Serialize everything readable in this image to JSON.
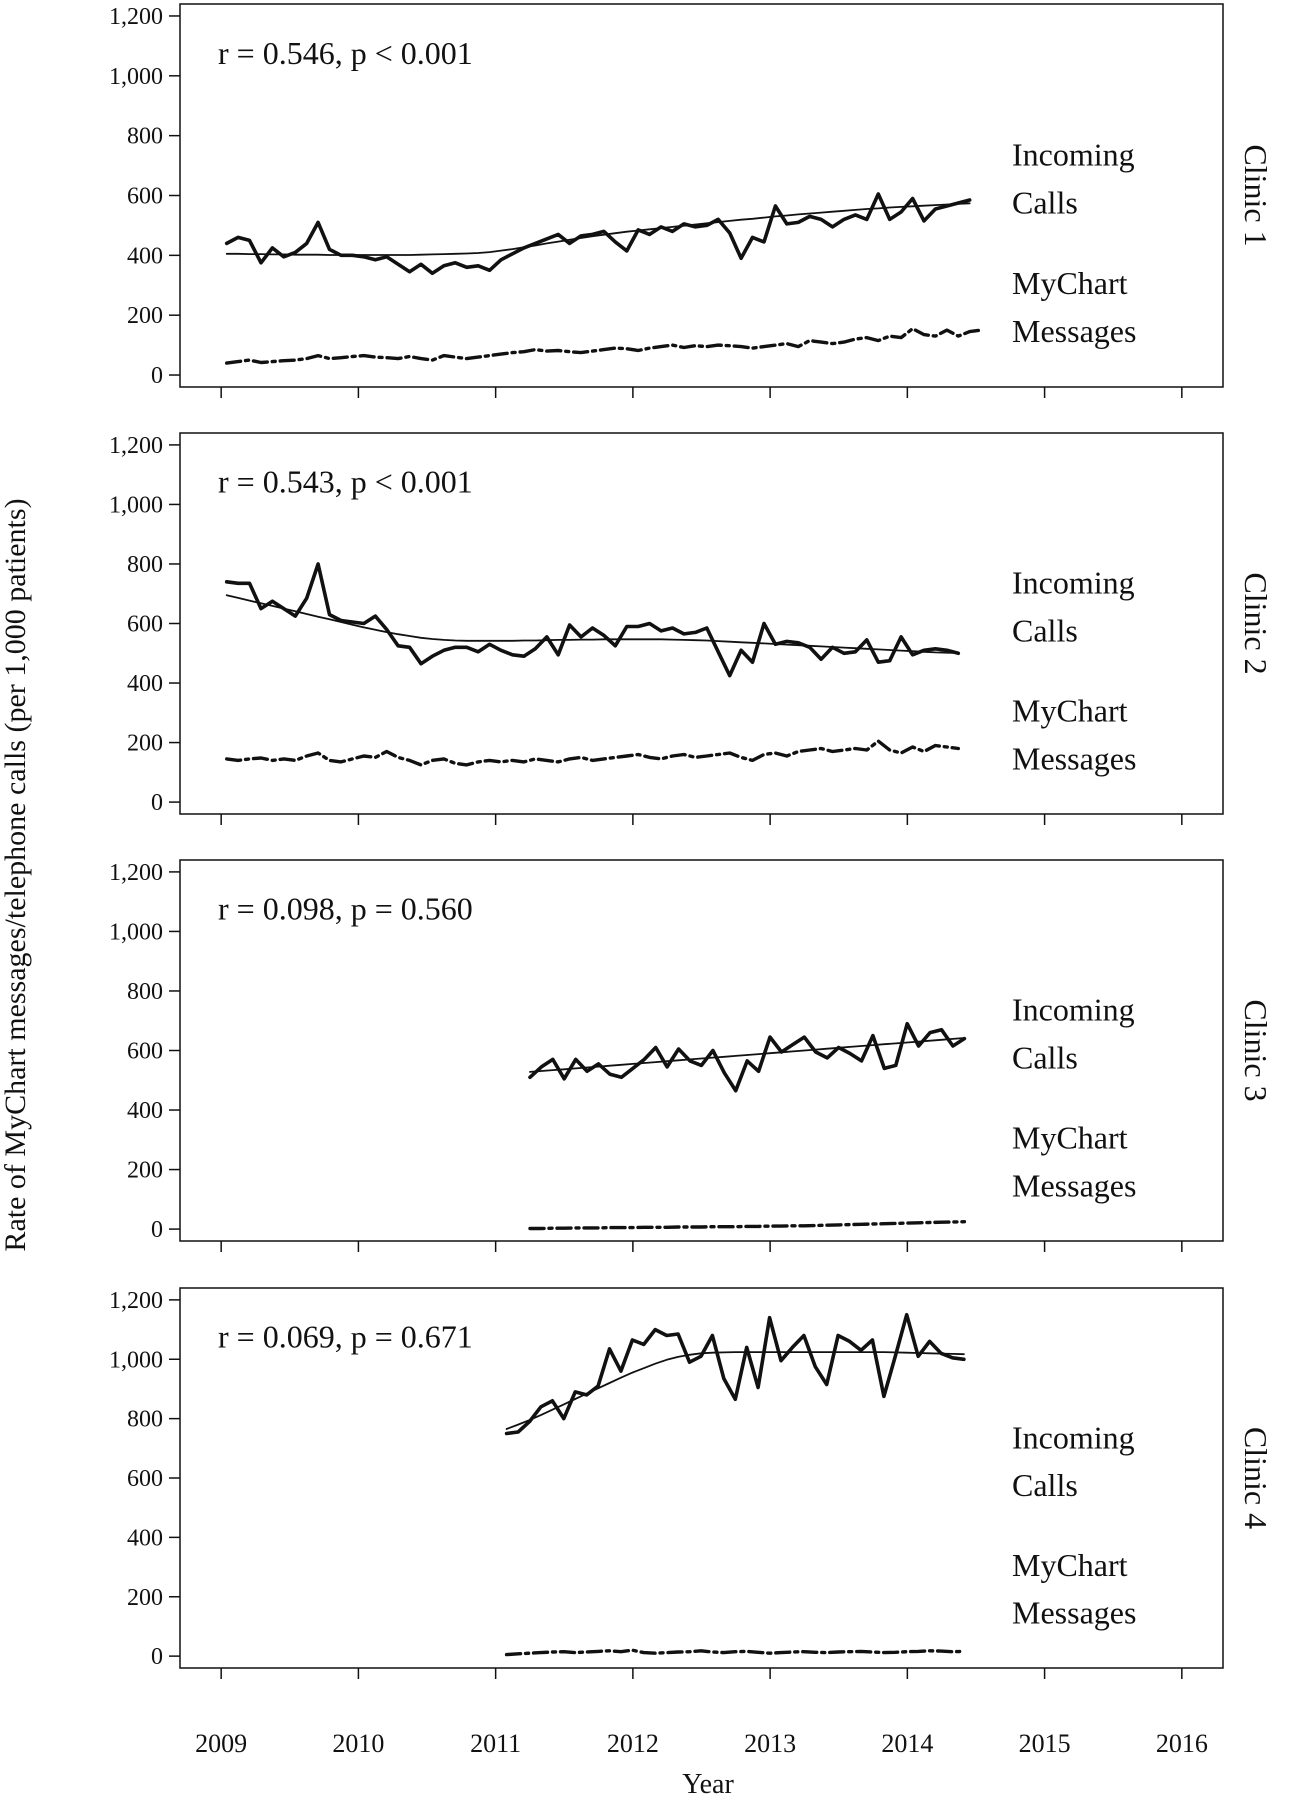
{
  "figure": {
    "ylabel": "Rate of MyChart messages/telephone calls (per 1,000 patients)",
    "xlabel": "Year",
    "xticks": [
      2009,
      2010,
      2011,
      2012,
      2013,
      2014,
      2015,
      2016
    ],
    "xlim": [
      2008.7,
      2016.3
    ],
    "ylim": [
      -40,
      1240
    ]
  },
  "chart_data": [
    {
      "type": "line",
      "panel_label": "Clinic 1",
      "stat_text": "r = 0.546, p < 0.001",
      "calls_label_1": "Incoming",
      "calls_label_2": "Calls",
      "messages_label_1": "MyChart",
      "messages_label_2": "Messages",
      "yticks": [
        0,
        200,
        400,
        600,
        800,
        1000,
        1200
      ],
      "ytick_labels": [
        "0",
        "200",
        "400",
        "600",
        "800",
        "1,000",
        "1,200"
      ],
      "series": [
        {
          "role": "calls",
          "start": 2009.04,
          "step": 0.0833,
          "values": [
            440,
            460,
            450,
            375,
            425,
            395,
            410,
            440,
            510,
            420,
            400,
            400,
            395,
            385,
            395,
            370,
            345,
            370,
            340,
            365,
            375,
            360,
            365,
            350,
            385,
            405,
            425,
            440,
            455,
            470,
            440,
            465,
            470,
            480,
            445,
            415,
            485,
            470,
            495,
            480,
            505,
            495,
            500,
            520,
            475,
            390,
            460,
            445,
            565,
            505,
            510,
            530,
            520,
            495,
            520,
            535,
            520,
            605,
            520,
            545,
            590,
            515,
            555,
            565,
            575,
            585
          ]
        },
        {
          "role": "calls_trend",
          "start": 2009.04,
          "step": 0.0833,
          "values": [
            405,
            405,
            404,
            404,
            403,
            403,
            402,
            402,
            402,
            401,
            401,
            401,
            401,
            401,
            401,
            401,
            401,
            402,
            403,
            404,
            405,
            406,
            408,
            411,
            416,
            421,
            427,
            433,
            440,
            446,
            452,
            458,
            464,
            469,
            474,
            479,
            483,
            487,
            491,
            495,
            499,
            503,
            507,
            511,
            515,
            519,
            522,
            526,
            530,
            533,
            537,
            540,
            543,
            546,
            549,
            552,
            555,
            557,
            560,
            562,
            564,
            566,
            568,
            570,
            572,
            574
          ]
        },
        {
          "role": "messages",
          "start": 2009.04,
          "step": 0.0833,
          "values": [
            40,
            45,
            50,
            42,
            45,
            48,
            50,
            55,
            65,
            55,
            58,
            62,
            65,
            60,
            58,
            55,
            62,
            55,
            50,
            65,
            60,
            55,
            60,
            65,
            70,
            75,
            78,
            85,
            80,
            82,
            78,
            75,
            80,
            85,
            90,
            88,
            82,
            90,
            95,
            100,
            92,
            98,
            95,
            100,
            98,
            95,
            90,
            95,
            100,
            105,
            95,
            115,
            110,
            105,
            110,
            120,
            125,
            115,
            130,
            125,
            155,
            135,
            130,
            150,
            130,
            145,
            150
          ]
        }
      ]
    },
    {
      "type": "line",
      "panel_label": "Clinic 2",
      "stat_text": "r = 0.543, p < 0.001",
      "calls_label_1": "Incoming",
      "calls_label_2": "Calls",
      "messages_label_1": "MyChart",
      "messages_label_2": "Messages",
      "yticks": [
        0,
        200,
        400,
        600,
        800,
        1000,
        1200
      ],
      "ytick_labels": [
        "0",
        "200",
        "400",
        "600",
        "800",
        "1,000",
        "1,200"
      ],
      "series": [
        {
          "role": "calls",
          "start": 2009.04,
          "step": 0.0833,
          "values": [
            740,
            735,
            735,
            650,
            675,
            650,
            625,
            685,
            800,
            630,
            610,
            605,
            600,
            625,
            580,
            525,
            520,
            465,
            490,
            510,
            520,
            520,
            505,
            530,
            510,
            495,
            490,
            515,
            555,
            495,
            595,
            555,
            585,
            560,
            525,
            590,
            590,
            600,
            575,
            585,
            565,
            570,
            585,
            505,
            425,
            510,
            470,
            600,
            530,
            540,
            535,
            520,
            480,
            520,
            500,
            505,
            545,
            470,
            475,
            555,
            495,
            510,
            515,
            510,
            500
          ]
        },
        {
          "role": "calls_trend",
          "start": 2009.04,
          "step": 0.0833,
          "values": [
            695,
            686,
            677,
            668,
            659,
            650,
            641,
            632,
            623,
            614,
            605,
            596,
            587,
            579,
            571,
            564,
            558,
            552,
            548,
            545,
            543,
            542,
            542,
            542,
            542,
            542,
            543,
            543,
            544,
            545,
            545,
            546,
            546,
            547,
            547,
            547,
            547,
            547,
            547,
            546,
            545,
            544,
            543,
            541,
            539,
            537,
            535,
            533,
            531,
            529,
            527,
            525,
            523,
            521,
            519,
            517,
            515,
            513,
            511,
            509,
            507,
            505,
            503,
            502,
            501
          ]
        },
        {
          "role": "messages",
          "start": 2009.04,
          "step": 0.0833,
          "values": [
            145,
            140,
            145,
            148,
            140,
            145,
            140,
            155,
            165,
            140,
            135,
            145,
            155,
            150,
            170,
            150,
            140,
            125,
            140,
            145,
            130,
            125,
            135,
            140,
            135,
            140,
            135,
            145,
            140,
            135,
            145,
            150,
            140,
            145,
            150,
            155,
            160,
            150,
            145,
            155,
            160,
            150,
            155,
            160,
            165,
            150,
            140,
            160,
            165,
            155,
            170,
            175,
            180,
            170,
            175,
            180,
            175,
            205,
            175,
            165,
            185,
            170,
            190,
            185,
            180
          ]
        }
      ]
    },
    {
      "type": "line",
      "panel_label": "Clinic 3",
      "stat_text": "r = 0.098, p = 0.560",
      "calls_label_1": "Incoming",
      "calls_label_2": "Calls",
      "messages_label_1": "MyChart",
      "messages_label_2": "Messages",
      "yticks": [
        0,
        200,
        400,
        600,
        800,
        1000,
        1200
      ],
      "ytick_labels": [
        "0",
        "200",
        "400",
        "600",
        "800",
        "1,000",
        "1,200"
      ],
      "series": [
        {
          "role": "calls",
          "start": 2011.25,
          "step": 0.0833,
          "values": [
            510,
            545,
            570,
            505,
            570,
            530,
            555,
            520,
            510,
            540,
            570,
            610,
            545,
            605,
            565,
            550,
            600,
            525,
            465,
            565,
            530,
            645,
            595,
            620,
            645,
            595,
            575,
            610,
            590,
            565,
            650,
            540,
            550,
            690,
            615,
            660,
            670,
            615,
            640
          ]
        },
        {
          "role": "calls_trend",
          "start": 2011.25,
          "step": 0.0833,
          "values": [
            528,
            531,
            534,
            537,
            540,
            543,
            546,
            549,
            552,
            555,
            558,
            561,
            564,
            567,
            570,
            573,
            576,
            579,
            582,
            585,
            588,
            591,
            594,
            597,
            600,
            603,
            606,
            609,
            612,
            615,
            618,
            621,
            624,
            627,
            630,
            633,
            636,
            639,
            642
          ]
        },
        {
          "role": "messages",
          "start": 2011.25,
          "step": 0.0833,
          "values": [
            2,
            2,
            3,
            3,
            4,
            4,
            4,
            5,
            5,
            5,
            6,
            6,
            6,
            7,
            7,
            7,
            8,
            8,
            8,
            9,
            9,
            10,
            10,
            11,
            11,
            12,
            13,
            14,
            15,
            16,
            17,
            18,
            19,
            20,
            21,
            22,
            23,
            24,
            25
          ]
        }
      ]
    },
    {
      "type": "line",
      "panel_label": "Clinic 4",
      "stat_text": "r = 0.069, p = 0.671",
      "calls_label_1": "Incoming",
      "calls_label_2": "Calls",
      "messages_label_1": "MyChart",
      "messages_label_2": "Messages",
      "yticks": [
        0,
        200,
        400,
        600,
        800,
        1000,
        1200
      ],
      "ytick_labels": [
        "0",
        "200",
        "400",
        "600",
        "800",
        "1,000",
        "1,200"
      ],
      "series": [
        {
          "role": "calls",
          "start": 2011.08,
          "step": 0.0833,
          "values": [
            750,
            755,
            790,
            840,
            860,
            800,
            890,
            880,
            910,
            1035,
            960,
            1065,
            1050,
            1100,
            1080,
            1085,
            990,
            1010,
            1080,
            935,
            865,
            1040,
            905,
            1140,
            995,
            1040,
            1080,
            975,
            915,
            1080,
            1060,
            1030,
            1065,
            875,
            1010,
            1150,
            1010,
            1060,
            1020,
            1005,
            1000
          ]
        },
        {
          "role": "calls_trend",
          "start": 2011.08,
          "step": 0.0833,
          "values": [
            765,
            780,
            795,
            812,
            830,
            848,
            866,
            884,
            902,
            920,
            938,
            955,
            970,
            985,
            998,
            1008,
            1015,
            1020,
            1022,
            1023,
            1024,
            1024,
            1024,
            1024,
            1024,
            1024,
            1024,
            1024,
            1024,
            1024,
            1024,
            1024,
            1024,
            1024,
            1023,
            1022,
            1021,
            1020,
            1019,
            1018,
            1017
          ]
        },
        {
          "role": "messages",
          "start": 2011.08,
          "step": 0.0833,
          "values": [
            5,
            8,
            10,
            12,
            14,
            15,
            12,
            14,
            16,
            18,
            15,
            20,
            12,
            10,
            12,
            14,
            15,
            18,
            14,
            12,
            15,
            16,
            13,
            10,
            12,
            14,
            15,
            13,
            12,
            14,
            15,
            16,
            14,
            12,
            13,
            15,
            16,
            18,
            17,
            15,
            16
          ]
        }
      ]
    }
  ]
}
